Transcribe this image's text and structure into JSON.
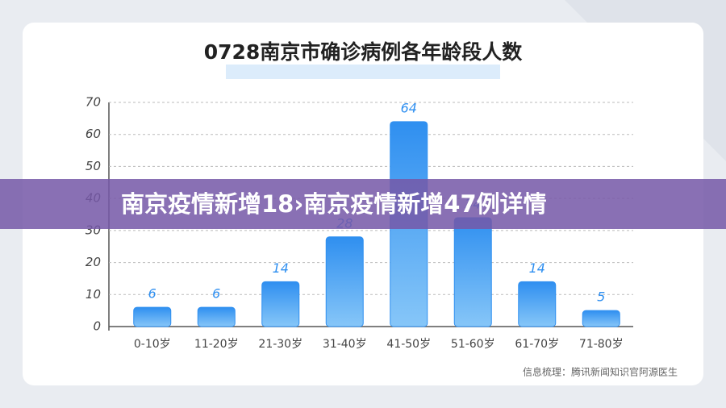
{
  "chart_data": {
    "type": "bar",
    "title": "0728南京市确诊病例各年龄段人数",
    "categories": [
      "0-10岁",
      "11-20岁",
      "21-30岁",
      "31-40岁",
      "41-50岁",
      "51-60岁",
      "61-70岁",
      "71-80岁"
    ],
    "values": [
      6,
      6,
      14,
      28,
      64,
      34,
      14,
      5
    ],
    "color": "#2f8ff0",
    "ylim": [
      0,
      70
    ],
    "yticks": [
      0,
      10,
      20,
      30,
      40,
      50,
      60,
      70
    ],
    "grid": true,
    "source": "信息梳理：腾讯新闻知识官阿源医生"
  },
  "banner": {
    "text": "南京疫情新增18›南京疫情新增47例详情"
  }
}
